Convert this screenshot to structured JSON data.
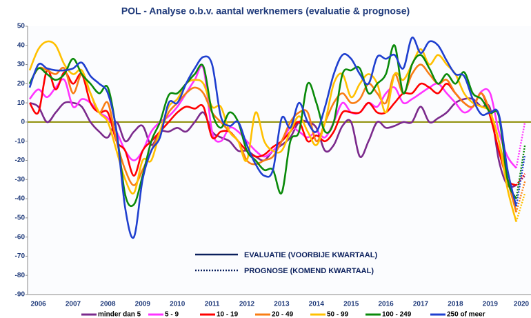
{
  "chart_data": {
    "type": "line",
    "title": "POL - Analyse o.b.v. aantal werknemers (evaluatie & prognose)",
    "categories": [
      null,
      "2006",
      null,
      null,
      null,
      "2007",
      null,
      null,
      null,
      "2008",
      null,
      null,
      null,
      "2009",
      null,
      null,
      null,
      "2010",
      null,
      null,
      null,
      "2011",
      null,
      null,
      null,
      "2012",
      null,
      null,
      null,
      "2013",
      null,
      null,
      null,
      "2014",
      null,
      null,
      null,
      "2015",
      null,
      null,
      null,
      "2016",
      null,
      null,
      null,
      "2017",
      null,
      null,
      null,
      "2018",
      null,
      null,
      null,
      "2019",
      null,
      null,
      null,
      "2020"
    ],
    "ylim": [
      -90,
      50
    ],
    "yticks": [
      -90,
      -80,
      -70,
      -60,
      -50,
      -40,
      -30,
      -20,
      -10,
      0,
      10,
      20,
      30,
      40,
      50
    ],
    "zero_line_color": "#8b8b00",
    "line_style_legend": {
      "solid": "EVALUATIE (VOORBIJE KWARTAAL)",
      "dotted": "PROGNOSE (KOMEND KWARTAAL)"
    },
    "series": [
      {
        "name": "minder dan 5",
        "color": "#7b2a8c",
        "values": [
          10,
          8,
          0,
          5,
          10,
          10,
          8,
          0,
          -5,
          -8,
          0,
          -10,
          -5,
          -2,
          -12,
          -5,
          -5,
          -3,
          -5,
          0,
          5,
          -5,
          -8,
          -10,
          -15,
          -15,
          -18,
          -20,
          -15,
          -12,
          -8,
          0,
          0,
          -3,
          -15,
          -12,
          -2,
          0,
          -18,
          -10,
          0,
          -3,
          -2,
          0,
          0,
          8,
          0,
          2,
          5,
          10,
          12,
          12,
          8,
          7,
          -20,
          -33,
          -33,
          null
        ],
        "forecast": [
          null,
          null,
          null,
          null,
          null,
          null,
          null,
          null,
          null,
          null,
          null,
          null,
          null,
          null,
          null,
          null,
          null,
          null,
          null,
          null,
          null,
          null,
          null,
          null,
          null,
          null,
          null,
          null,
          null,
          null,
          null,
          null,
          null,
          null,
          null,
          null,
          null,
          null,
          null,
          null,
          null,
          null,
          null,
          null,
          null,
          null,
          null,
          null,
          null,
          null,
          null,
          null,
          null,
          null,
          null,
          null,
          null,
          -28
        ]
      },
      {
        "name": "5 - 9",
        "color": "#ff33ff",
        "values": [
          12,
          17,
          13,
          18,
          22,
          8,
          12,
          10,
          5,
          2,
          -5,
          -15,
          -20,
          -15,
          -5,
          0,
          3,
          8,
          15,
          22,
          28,
          -5,
          -10,
          -3,
          -5,
          -10,
          -15,
          -18,
          -15,
          -10,
          -3,
          -5,
          -8,
          -5,
          -8,
          0,
          10,
          5,
          5,
          10,
          8,
          15,
          18,
          10,
          12,
          15,
          18,
          20,
          15,
          10,
          5,
          8,
          16,
          15,
          -5,
          -18,
          -24,
          null
        ],
        "forecast": [
          null,
          null,
          null,
          null,
          null,
          null,
          null,
          null,
          null,
          null,
          null,
          null,
          null,
          null,
          null,
          null,
          null,
          null,
          null,
          null,
          null,
          null,
          null,
          null,
          null,
          null,
          null,
          null,
          null,
          null,
          null,
          null,
          null,
          null,
          null,
          null,
          null,
          null,
          null,
          null,
          null,
          null,
          null,
          null,
          null,
          null,
          null,
          null,
          null,
          null,
          null,
          null,
          null,
          null,
          null,
          null,
          null,
          0
        ]
      },
      {
        "name": "10 - 19",
        "color": "#ff0000",
        "values": [
          10,
          5,
          27,
          17,
          26,
          20,
          25,
          10,
          5,
          5,
          -10,
          -15,
          -28,
          -15,
          -10,
          -5,
          0,
          5,
          8,
          7,
          8,
          -8,
          -5,
          -5,
          -10,
          -15,
          -18,
          -17,
          -13,
          -10,
          -5,
          0,
          -10,
          -7,
          -10,
          -5,
          5,
          5,
          5,
          10,
          5,
          5,
          10,
          15,
          15,
          20,
          18,
          15,
          20,
          15,
          10,
          8,
          15,
          3,
          -15,
          -30,
          -33,
          null
        ],
        "forecast": [
          null,
          null,
          null,
          null,
          null,
          null,
          null,
          null,
          null,
          null,
          null,
          null,
          null,
          null,
          null,
          null,
          null,
          null,
          null,
          null,
          null,
          null,
          null,
          null,
          null,
          null,
          null,
          null,
          null,
          null,
          null,
          null,
          null,
          null,
          null,
          null,
          null,
          null,
          null,
          null,
          null,
          null,
          null,
          null,
          null,
          null,
          null,
          null,
          null,
          null,
          null,
          null,
          null,
          null,
          null,
          null,
          null,
          -27
        ]
      },
      {
        "name": "20 - 49",
        "color": "#f97d14",
        "values": [
          20,
          28,
          27,
          25,
          28,
          15,
          25,
          15,
          5,
          10,
          -10,
          -25,
          -33,
          -25,
          -15,
          -5,
          5,
          10,
          15,
          18,
          15,
          5,
          0,
          -5,
          -10,
          -20,
          -22,
          -20,
          -18,
          -10,
          0,
          5,
          5,
          -10,
          0,
          10,
          15,
          10,
          12,
          20,
          15,
          10,
          25,
          15,
          25,
          30,
          25,
          20,
          22,
          15,
          10,
          8,
          15,
          5,
          -10,
          -30,
          -47,
          null
        ],
        "forecast": [
          null,
          null,
          null,
          null,
          null,
          null,
          null,
          null,
          null,
          null,
          null,
          null,
          null,
          null,
          null,
          null,
          null,
          null,
          null,
          null,
          null,
          null,
          null,
          null,
          null,
          null,
          null,
          null,
          null,
          null,
          null,
          null,
          null,
          null,
          null,
          null,
          null,
          null,
          null,
          null,
          null,
          null,
          null,
          null,
          null,
          null,
          null,
          null,
          null,
          null,
          null,
          null,
          null,
          null,
          null,
          null,
          null,
          -31
        ]
      },
      {
        "name": "50 - 99",
        "color": "#ffc000",
        "values": [
          27,
          38,
          42,
          40,
          30,
          25,
          27,
          15,
          5,
          0,
          -15,
          -30,
          -37,
          -20,
          -20,
          -5,
          8,
          12,
          20,
          22,
          20,
          8,
          8,
          -5,
          -10,
          -20,
          5,
          -10,
          -15,
          -15,
          -5,
          3,
          -5,
          -12,
          0,
          20,
          25,
          13,
          20,
          25,
          20,
          5,
          25,
          22,
          30,
          38,
          30,
          35,
          30,
          25,
          15,
          10,
          8,
          5,
          -10,
          -35,
          -52,
          null
        ],
        "forecast": [
          null,
          null,
          null,
          null,
          null,
          null,
          null,
          null,
          null,
          null,
          null,
          null,
          null,
          null,
          null,
          null,
          null,
          null,
          null,
          null,
          null,
          null,
          null,
          null,
          null,
          null,
          null,
          null,
          null,
          null,
          null,
          null,
          null,
          null,
          null,
          null,
          null,
          null,
          null,
          null,
          null,
          null,
          null,
          null,
          null,
          null,
          null,
          null,
          null,
          null,
          null,
          null,
          null,
          null,
          null,
          null,
          null,
          -37
        ]
      },
      {
        "name": "100 - 249",
        "color": "#0a8a0a",
        "values": [
          20,
          28,
          25,
          22,
          25,
          33,
          25,
          20,
          15,
          18,
          -5,
          -38,
          -43,
          -28,
          -10,
          0,
          14,
          15,
          20,
          25,
          29,
          5,
          -3,
          5,
          0,
          -15,
          -20,
          -25,
          -25,
          -37,
          -10,
          -5,
          20,
          10,
          -5,
          0,
          25,
          27,
          28,
          15,
          20,
          25,
          40,
          15,
          30,
          35,
          28,
          20,
          25,
          20,
          26,
          15,
          12,
          5,
          3,
          -30,
          -40,
          null
        ],
        "forecast": [
          null,
          null,
          null,
          null,
          null,
          null,
          null,
          null,
          null,
          null,
          null,
          null,
          null,
          null,
          null,
          null,
          null,
          null,
          null,
          null,
          null,
          null,
          null,
          null,
          null,
          null,
          null,
          null,
          null,
          null,
          null,
          null,
          null,
          null,
          null,
          null,
          null,
          null,
          null,
          null,
          null,
          null,
          null,
          null,
          null,
          null,
          null,
          null,
          null,
          null,
          null,
          null,
          null,
          null,
          null,
          null,
          null,
          -12
        ]
      },
      {
        "name": "250 of meer",
        "color": "#1f3fcf",
        "values": [
          18,
          30,
          28,
          27,
          27,
          28,
          31,
          24,
          20,
          15,
          -5,
          -45,
          -60,
          -30,
          -15,
          -8,
          10,
          10,
          20,
          28,
          34,
          30,
          3,
          -2,
          0,
          -12,
          -22,
          -28,
          -25,
          2,
          -3,
          10,
          0,
          -5,
          8,
          25,
          35,
          33,
          25,
          20,
          34,
          33,
          35,
          28,
          44,
          36,
          42,
          40,
          32,
          25,
          24,
          12,
          4,
          5,
          4,
          -25,
          -44,
          null
        ],
        "forecast": [
          null,
          null,
          null,
          null,
          null,
          null,
          null,
          null,
          null,
          null,
          null,
          null,
          null,
          null,
          null,
          null,
          null,
          null,
          null,
          null,
          null,
          null,
          null,
          null,
          null,
          null,
          null,
          null,
          null,
          null,
          null,
          null,
          null,
          null,
          null,
          null,
          null,
          null,
          null,
          null,
          null,
          null,
          null,
          null,
          null,
          null,
          null,
          null,
          null,
          null,
          null,
          null,
          null,
          null,
          null,
          null,
          null,
          -17
        ]
      }
    ]
  }
}
